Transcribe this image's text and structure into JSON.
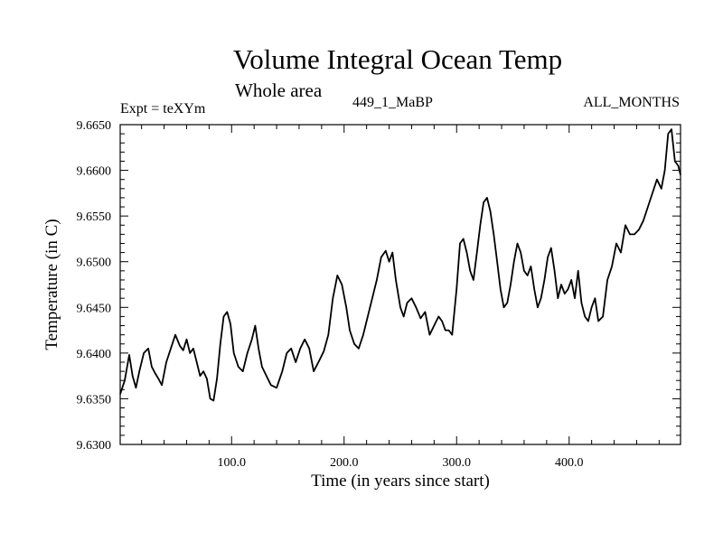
{
  "header": {
    "title": "Volume Integral Ocean Temp",
    "subtitle": "Whole area",
    "left_label": "Expt = teXYm",
    "center_label": "449_1_MaBP",
    "right_label": "ALL_MONTHS"
  },
  "chart_data": {
    "type": "line",
    "title": "Volume Integral Ocean Temp",
    "subtitle": "Whole area",
    "xlabel": "Time (in years since start)",
    "ylabel": "Temperature (in C)",
    "xlim": [
      1,
      499
    ],
    "ylim": [
      9.63,
      9.665
    ],
    "xticks": [
      100.0,
      200.0,
      300.0,
      400.0
    ],
    "xtick_labels": [
      "100.0",
      "200.0",
      "300.0",
      "400.0"
    ],
    "yticks": [
      9.63,
      9.635,
      9.64,
      9.645,
      9.65,
      9.655,
      9.66,
      9.665
    ],
    "ytick_labels": [
      "9.6300",
      "9.6350",
      "9.6400",
      "9.6450",
      "9.6500",
      "9.6550",
      "9.6600",
      "9.6650"
    ],
    "grid": false,
    "series": [
      {
        "color": "#000000",
        "x": [
          1,
          5,
          9,
          12,
          15,
          18,
          22,
          26,
          29,
          32,
          35,
          38,
          42,
          46,
          50,
          54,
          57,
          60,
          63,
          66,
          69,
          72,
          75,
          78,
          81,
          84,
          87,
          90,
          93,
          96,
          99,
          102,
          106,
          110,
          114,
          118,
          121,
          124,
          127,
          131,
          135,
          140,
          145,
          149,
          153,
          157,
          161,
          165,
          169,
          173,
          178,
          182,
          186,
          190,
          194,
          198,
          202,
          205,
          209,
          213,
          217,
          221,
          225,
          229,
          233,
          237,
          240,
          243,
          246,
          250,
          253,
          256,
          260,
          264,
          268,
          272,
          276,
          280,
          284,
          287,
          290,
          293,
          296,
          300,
          303,
          306,
          309,
          312,
          315,
          318,
          321,
          324,
          327,
          330,
          333,
          336,
          339,
          342,
          345,
          348,
          351,
          354,
          357,
          360,
          363,
          366,
          369,
          372,
          375,
          378,
          381,
          384,
          387,
          390,
          393,
          396,
          399,
          402,
          405,
          408,
          411,
          414,
          417,
          420,
          423,
          426,
          430,
          434,
          438,
          442,
          446,
          450,
          454,
          458,
          462,
          466,
          470,
          474,
          478,
          482,
          485,
          488,
          491,
          494,
          497,
          499
        ],
        "values": [
          9.6355,
          9.637,
          9.6398,
          9.6375,
          9.6362,
          9.638,
          9.64,
          9.6405,
          9.6385,
          9.6378,
          9.6372,
          9.6365,
          9.639,
          9.6405,
          9.642,
          9.6408,
          9.6403,
          9.6415,
          9.64,
          9.6405,
          9.639,
          9.6375,
          9.638,
          9.6372,
          9.635,
          9.6348,
          9.6372,
          9.641,
          9.644,
          9.6445,
          9.6432,
          9.64,
          9.6385,
          9.638,
          9.64,
          9.6415,
          9.643,
          9.6405,
          9.6385,
          9.6375,
          9.6365,
          9.6362,
          9.638,
          9.64,
          9.6405,
          9.639,
          9.6405,
          9.6415,
          9.6405,
          9.638,
          9.6392,
          9.6402,
          9.642,
          9.646,
          9.6485,
          9.6475,
          9.645,
          9.6425,
          9.641,
          9.6405,
          9.642,
          9.644,
          9.646,
          9.648,
          9.6505,
          9.6512,
          9.65,
          9.651,
          9.648,
          9.645,
          9.644,
          9.6455,
          9.646,
          9.645,
          9.6438,
          9.6445,
          9.642,
          9.643,
          9.644,
          9.6435,
          9.6425,
          9.6425,
          9.642,
          9.647,
          9.652,
          9.6525,
          9.651,
          9.649,
          9.648,
          9.651,
          9.654,
          9.6565,
          9.657,
          9.6555,
          9.653,
          9.65,
          9.647,
          9.645,
          9.6455,
          9.6475,
          9.65,
          9.652,
          9.651,
          9.649,
          9.6485,
          9.6495,
          9.647,
          9.645,
          9.646,
          9.648,
          9.6505,
          9.6515,
          9.649,
          9.646,
          9.6475,
          9.6465,
          9.647,
          9.648,
          9.646,
          9.649,
          9.6455,
          9.644,
          9.6435,
          9.645,
          9.646,
          9.6435,
          9.644,
          9.648,
          9.6495,
          9.652,
          9.651,
          9.654,
          9.653,
          9.653,
          9.6535,
          9.6545,
          9.656,
          9.6575,
          9.659,
          9.658,
          9.66,
          9.664,
          9.6645,
          9.661,
          9.6605,
          9.6595
        ]
      }
    ]
  }
}
